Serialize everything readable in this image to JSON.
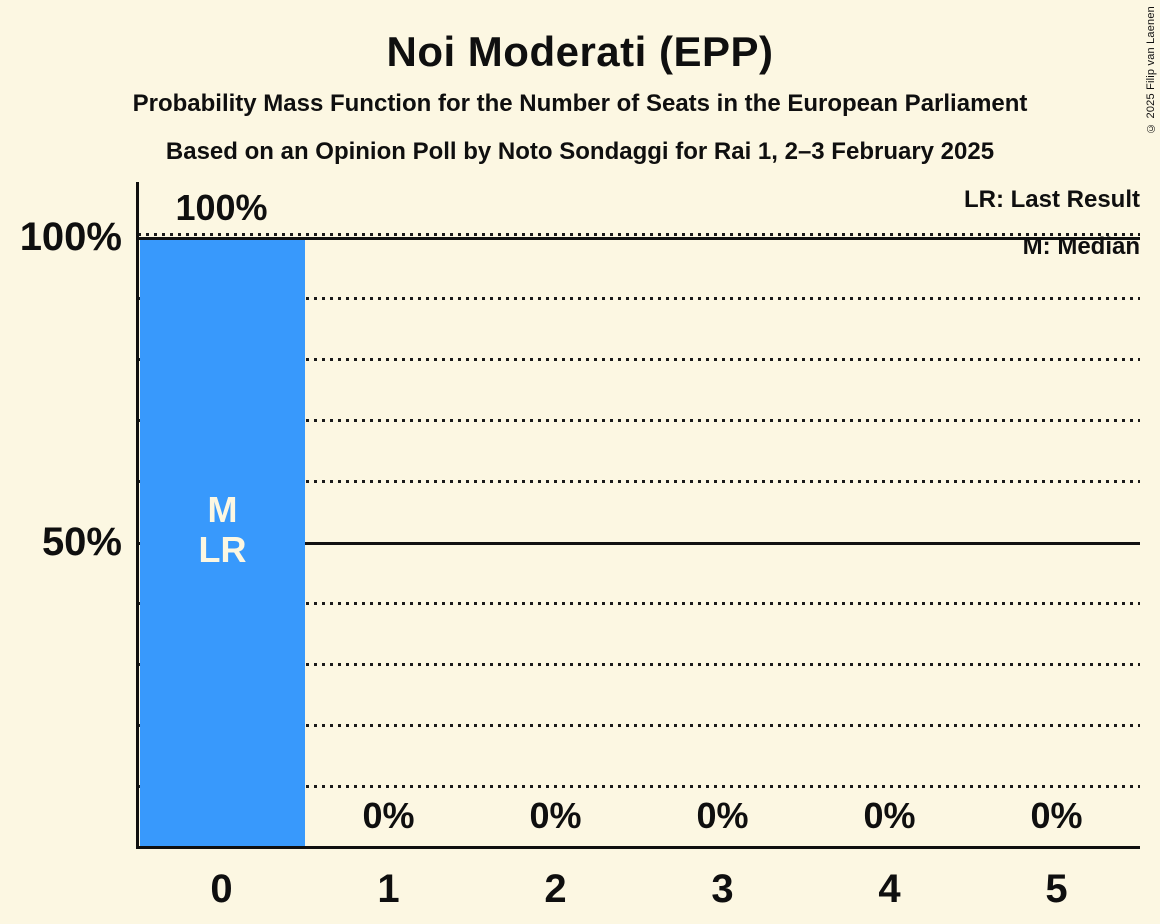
{
  "chart_data": {
    "type": "bar",
    "title": "Noi Moderati (EPP)",
    "subtitle": "Probability Mass Function for the Number of Seats in the European Parliament",
    "source_line": "Based on an Opinion Poll by Noto Sondaggi for Rai 1, 2–3 February 2025",
    "categories": [
      "0",
      "1",
      "2",
      "3",
      "4",
      "5"
    ],
    "values": [
      100,
      0,
      0,
      0,
      0,
      0
    ],
    "value_labels": [
      "100%",
      "0%",
      "0%",
      "0%",
      "0%",
      "0%"
    ],
    "xlabel": "",
    "ylabel": "",
    "ylim": [
      0,
      100
    ],
    "y_ticks": [
      {
        "value": 100,
        "label": "100%"
      },
      {
        "value": 50,
        "label": "50%"
      }
    ],
    "gridlines_dotted_percent": [
      10,
      20,
      30,
      40,
      60,
      70,
      80,
      90,
      100
    ],
    "solid_lines_percent": [
      50,
      100
    ],
    "legend": [
      {
        "label": "LR: Last Result"
      },
      {
        "label": "M: Median"
      }
    ],
    "bar_annotations": {
      "category_index": 0,
      "lines": [
        "M",
        "LR"
      ]
    },
    "colors": {
      "bar": "#3899FC",
      "background": "#FCF7E2",
      "text": "#0f0f0f",
      "bar_label_text": "#FCF7E2"
    }
  },
  "copyright": "© 2025 Filip van Laenen"
}
